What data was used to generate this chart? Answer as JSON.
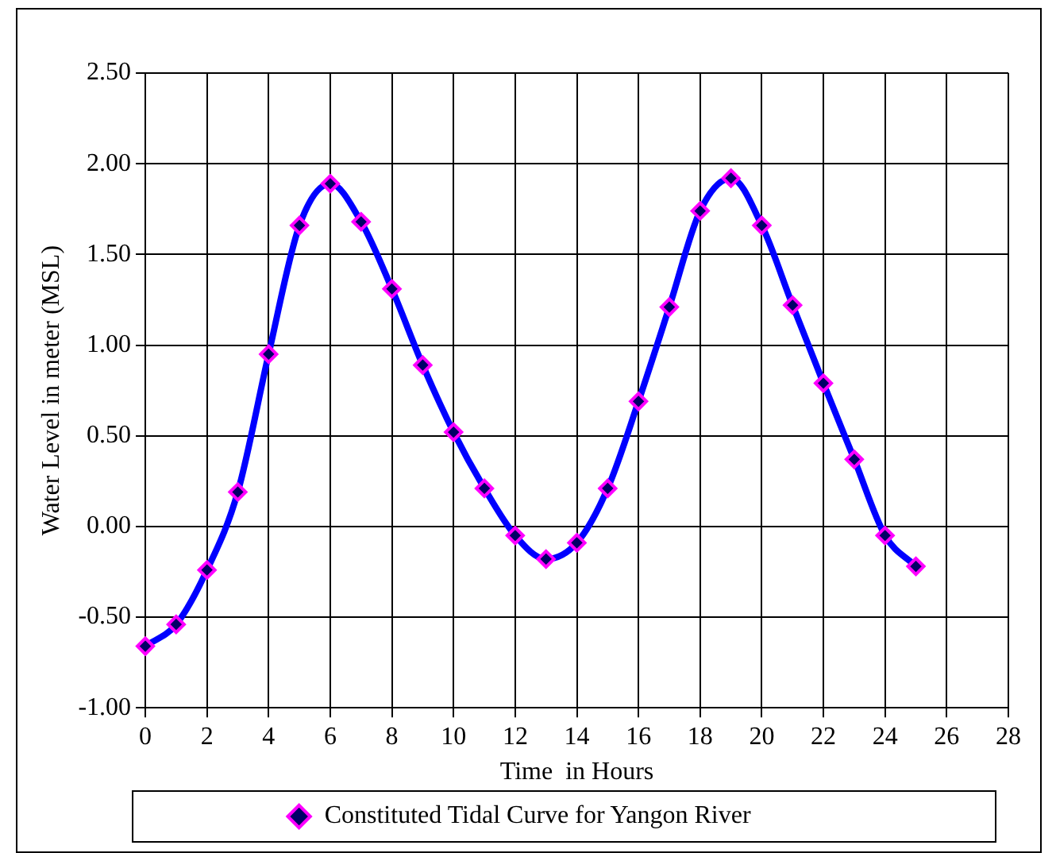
{
  "chart_data": {
    "type": "line",
    "xlabel": "Time  in Hours",
    "ylabel": "Water Level in meter (MSL)",
    "x": [
      0,
      1,
      2,
      3,
      4,
      5,
      6,
      7,
      8,
      9,
      10,
      11,
      12,
      13,
      14,
      15,
      16,
      17,
      18,
      19,
      20,
      21,
      22,
      23,
      24,
      25
    ],
    "series": [
      {
        "name": "Constituted Tidal Curve for Yangon River",
        "color": "#0000ff",
        "values": [
          -0.66,
          -0.54,
          -0.24,
          0.19,
          0.95,
          1.66,
          1.89,
          1.68,
          1.31,
          0.89,
          0.52,
          0.21,
          -0.05,
          -0.18,
          -0.09,
          0.21,
          0.69,
          1.21,
          1.74,
          1.92,
          1.66,
          1.22,
          0.79,
          0.37,
          -0.05,
          -0.22
        ]
      }
    ],
    "xlim": [
      0,
      28
    ],
    "xticks": [
      0,
      2,
      4,
      6,
      8,
      10,
      12,
      14,
      16,
      18,
      20,
      22,
      24,
      26,
      28
    ],
    "ylim": [
      -1,
      2.5
    ],
    "yticks": [
      {
        "value": -1,
        "label": "-1.00"
      },
      {
        "value": -0.5,
        "label": "-0.50"
      },
      {
        "value": 0,
        "label": "0.00"
      },
      {
        "value": 0.5,
        "label": "0.50"
      },
      {
        "value": 1,
        "label": "1.00"
      },
      {
        "value": 1.5,
        "label": "1.50"
      },
      {
        "value": 2,
        "label": "2.00"
      },
      {
        "value": 2.5,
        "label": "2.50"
      }
    ],
    "grid": true,
    "legend": "bottom",
    "marker": "diamond",
    "line_style": "solid"
  }
}
